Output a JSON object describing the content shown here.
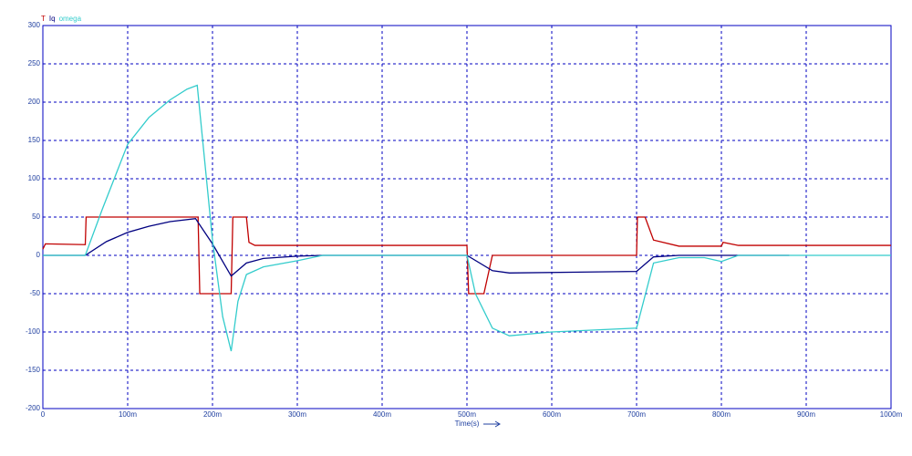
{
  "chart_data": {
    "type": "line",
    "x_label": "Time(s)",
    "xlim": [
      0,
      1
    ],
    "xticks": [
      0,
      {
        "value": 0.1,
        "label": "100m"
      },
      {
        "value": 0.2,
        "label": "200m"
      },
      {
        "value": 0.3,
        "label": "300m"
      },
      {
        "value": 0.4,
        "label": "400m"
      },
      {
        "value": 0.5,
        "label": "500m"
      },
      {
        "value": 0.6,
        "label": "600m"
      },
      {
        "value": 0.7,
        "label": "700m"
      },
      {
        "value": 0.8,
        "label": "800m"
      },
      {
        "value": 0.9,
        "label": "900m"
      },
      {
        "value": 1,
        "label": "1000m"
      }
    ],
    "ylim": [
      -200,
      300
    ],
    "yticks": [
      -200,
      -150,
      -100,
      -50,
      0,
      50,
      100,
      150,
      200,
      250,
      300
    ],
    "grid": true,
    "series": [
      {
        "name": "T",
        "color": "#c00000",
        "x": [
          0,
          0.003,
          0.05,
          0.051,
          0.183,
          0.185,
          0.222,
          0.224,
          0.24,
          0.243,
          0.25,
          0.3,
          0.5,
          0.502,
          0.52,
          0.53,
          0.7,
          0.701,
          0.71,
          0.72,
          0.75,
          0.8,
          0.802,
          0.82,
          1
        ],
        "values": [
          8,
          15,
          14,
          50,
          50,
          -50,
          -50,
          50,
          50,
          17,
          13,
          13,
          13,
          -50,
          -50,
          0,
          0,
          50,
          50,
          20,
          12,
          12,
          17,
          13,
          13
        ]
      },
      {
        "name": "Iq",
        "color": "#000080",
        "x": [
          0,
          0.05,
          0.075,
          0.1,
          0.125,
          0.15,
          0.18,
          0.2,
          0.222,
          0.24,
          0.26,
          0.3,
          0.33,
          0.5,
          0.53,
          0.55,
          0.7,
          0.72,
          0.75,
          0.88
        ],
        "values": [
          0,
          0,
          18,
          30,
          38,
          44,
          48,
          15,
          -27,
          -10,
          -4,
          -1,
          0,
          0,
          -20,
          -23,
          -21,
          -2,
          0,
          0
        ]
      },
      {
        "name": "omega",
        "color": "#33cccc",
        "x": [
          0,
          0.05,
          0.07,
          0.1,
          0.125,
          0.15,
          0.17,
          0.182,
          0.2,
          0.212,
          0.222,
          0.23,
          0.24,
          0.26,
          0.3,
          0.33,
          0.5,
          0.51,
          0.53,
          0.55,
          0.6,
          0.7,
          0.72,
          0.75,
          0.78,
          0.8,
          0.82,
          1
        ],
        "values": [
          0,
          0,
          60,
          145,
          180,
          203,
          217,
          222,
          20,
          -80,
          -125,
          -60,
          -25,
          -15,
          -7,
          0,
          0,
          -50,
          -95,
          -105,
          -100,
          -95,
          -10,
          -3,
          -3,
          -8,
          0,
          0
        ]
      }
    ]
  }
}
